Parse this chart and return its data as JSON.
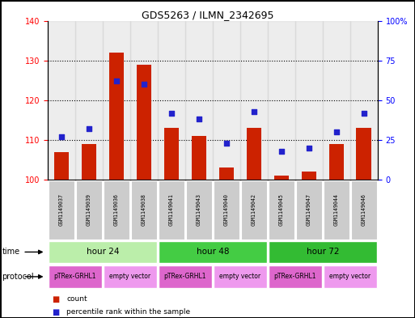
{
  "title": "GDS5263 / ILMN_2342695",
  "samples": [
    "GSM1149037",
    "GSM1149039",
    "GSM1149036",
    "GSM1149038",
    "GSM1149041",
    "GSM1149043",
    "GSM1149040",
    "GSM1149042",
    "GSM1149045",
    "GSM1149047",
    "GSM1149044",
    "GSM1149046"
  ],
  "counts": [
    107,
    109,
    132,
    129,
    113,
    111,
    103,
    113,
    101,
    102,
    109,
    113
  ],
  "percentile_ranks": [
    27,
    32,
    62,
    60,
    42,
    38,
    23,
    43,
    18,
    20,
    30,
    42
  ],
  "ylim_left": [
    100,
    140
  ],
  "ylim_right": [
    0,
    100
  ],
  "yticks_left": [
    100,
    110,
    120,
    130,
    140
  ],
  "yticks_right": [
    0,
    25,
    50,
    75,
    100
  ],
  "yticklabels_right": [
    "0",
    "25",
    "50",
    "75",
    "100%"
  ],
  "bar_color": "#cc2200",
  "dot_color": "#2222cc",
  "time_groups": [
    {
      "label": "hour 24",
      "start": 0,
      "end": 4,
      "color": "#bbeeaa"
    },
    {
      "label": "hour 48",
      "start": 4,
      "end": 8,
      "color": "#44cc44"
    },
    {
      "label": "hour 72",
      "start": 8,
      "end": 12,
      "color": "#33bb33"
    }
  ],
  "protocol_groups": [
    {
      "label": "pTRex-GRHL1",
      "start": 0,
      "end": 2,
      "color": "#dd66cc"
    },
    {
      "label": "empty vector",
      "start": 2,
      "end": 4,
      "color": "#ee99ee"
    },
    {
      "label": "pTRex-GRHL1",
      "start": 4,
      "end": 6,
      "color": "#dd66cc"
    },
    {
      "label": "empty vector",
      "start": 6,
      "end": 8,
      "color": "#ee99ee"
    },
    {
      "label": "pTRex-GRHL1",
      "start": 8,
      "end": 10,
      "color": "#dd66cc"
    },
    {
      "label": "empty vector",
      "start": 10,
      "end": 12,
      "color": "#ee99ee"
    }
  ],
  "sample_bg_color": "#cccccc",
  "legend_items": [
    {
      "label": "count",
      "color": "#cc2200"
    },
    {
      "label": "percentile rank within the sample",
      "color": "#2222cc"
    }
  ]
}
